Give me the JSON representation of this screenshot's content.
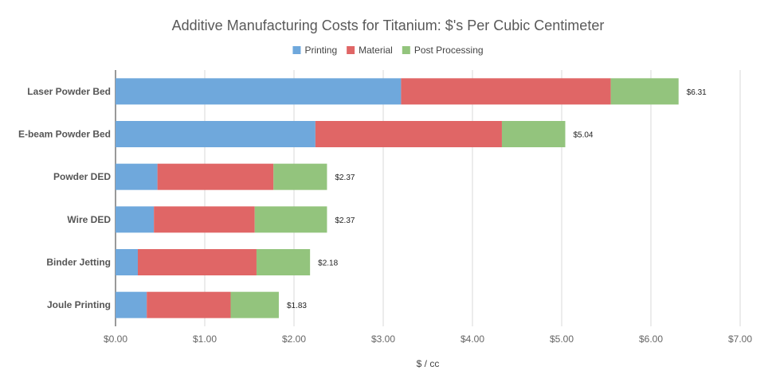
{
  "chart_data": {
    "type": "bar",
    "orientation": "horizontal",
    "stacked": true,
    "title": "Additive Manufacturing Costs for Titanium: $'s Per Cubic Centimeter",
    "xlabel": "$ / cc",
    "ylabel": "",
    "xlim": [
      0,
      7
    ],
    "x_ticks": [
      0,
      1,
      2,
      3,
      4,
      5,
      6,
      7
    ],
    "x_tick_labels": [
      "$0.00",
      "$1.00",
      "$2.00",
      "$3.00",
      "$4.00",
      "$5.00",
      "$6.00",
      "$7.00"
    ],
    "grid": true,
    "legend_position": "top",
    "categories": [
      "Laser Powder Bed",
      "E-beam Powder Bed",
      "Powder DED",
      "Wire DED",
      "Binder Jetting",
      "Joule Printing"
    ],
    "series": [
      {
        "name": "Printing",
        "color": "#6fa8dc",
        "values": [
          3.2,
          2.24,
          0.47,
          0.43,
          0.25,
          0.35
        ]
      },
      {
        "name": "Material",
        "color": "#e06666",
        "values": [
          2.35,
          2.09,
          1.3,
          1.13,
          1.33,
          0.94
        ]
      },
      {
        "name": "Post Processing",
        "color": "#93c47d",
        "values": [
          0.76,
          0.71,
          0.6,
          0.81,
          0.6,
          0.54
        ]
      }
    ],
    "totals": [
      6.31,
      5.04,
      2.37,
      2.37,
      2.18,
      1.83
    ],
    "total_labels": [
      "$6.31",
      "$5.04",
      "$2.37",
      "$2.37",
      "$2.18",
      "$1.83"
    ]
  }
}
